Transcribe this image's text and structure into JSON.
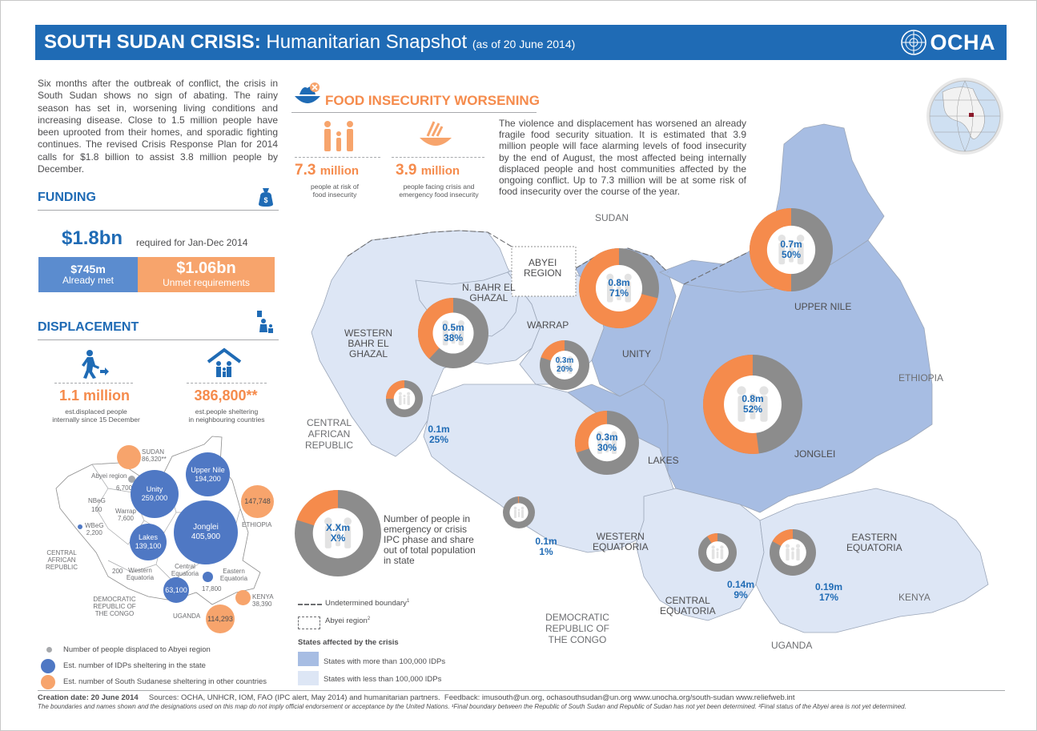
{
  "header": {
    "title_bold": "SOUTH SUDAN CRISIS:",
    "title_normal": "Humanitarian Snapshot",
    "title_date": "(as of 20 June 2014)",
    "logo_text": "OCHA"
  },
  "intro": "Six months after the outbreak of conflict, the crisis in South Sudan shows no sign of abating. The rainy season has set in, worsening living conditions and increasing disease. Close to 1.5 million people have been uprooted from their homes, and sporadic fighting continues. The revised Crisis Response Plan for 2014 calls for $1.8 billion to assist 3.8 million people by December.",
  "funding": {
    "title": "FUNDING",
    "required_value": "$1.8bn",
    "required_label": "required for Jan-Dec 2014",
    "met_value": "$745m",
    "met_label": "Already met",
    "met_share": 0.42,
    "unmet_value": "$1.06bn",
    "unmet_label": "Unmet requirements"
  },
  "displacement": {
    "title": "DISPLACEMENT",
    "idp_value": "1.1 million",
    "idp_label_1": "est.displaced people",
    "idp_label_2": "internally since 15 December",
    "refugee_value": "386,800**",
    "refugee_label_1": "est.people sheltering",
    "refugee_label_2": "in neighbouring countries"
  },
  "small_map": {
    "sudan": {
      "name": "SUDAN",
      "value": "86,320**"
    },
    "abyei": {
      "name": "Abyei region",
      "value": "6,700"
    },
    "unity": {
      "name": "Unity",
      "value": "259,000"
    },
    "upper_nile": {
      "name": "Upper Nile",
      "value": "194,200"
    },
    "ethiopia_val": "147,748",
    "ethiopia": "ETHIOPIA",
    "nbeg": {
      "name": "NBeG",
      "value": "100"
    },
    "warrap": {
      "name": "Warrap",
      "value": "7,600"
    },
    "wbeg": {
      "name": "WBeG",
      "value": "2,200"
    },
    "lakes": {
      "name": "Lakes",
      "value": "139,100"
    },
    "jonglei": {
      "name": "Jonglei",
      "value": "405,900"
    },
    "car": "CENTRAL AFRICAN REPUBLIC",
    "wequatoria": {
      "value": "200",
      "name": "Western Equatoria"
    },
    "cequatoria": {
      "name": "Central Equatoria",
      "value": "63,100"
    },
    "eequatoria": {
      "name": "Eastern Equatoria",
      "value": "17,800"
    },
    "kenya": {
      "name": "KENYA",
      "value": "38,390"
    },
    "drc": "DEMOCRATIC REPUBLIC OF THE CONGO",
    "uganda": {
      "name": "UGANDA",
      "value": "114,293"
    }
  },
  "legend_small": {
    "abyei": "Number of people displaced to Abyei region",
    "idps": "Est. number of IDPs sheltering in the state",
    "other": "Est. number of South Sudanese sheltering in other countries"
  },
  "food": {
    "title": "FOOD INSECURITY WORSENING",
    "risk_value": "7.3",
    "risk_unit": "million",
    "risk_label_1": "people at risk of",
    "risk_label_2": "food insecurity",
    "crisis_value": "3.9",
    "crisis_unit": "million",
    "crisis_label_1": "people facing crisis and",
    "crisis_label_2": "emergency food insecurity",
    "paragraph": "The violence and displacement has worsened an already fragile food security situation. It is estimated that 3.9 million people will face alarming levels of food insecurity by the end of August, the most affected being internally displaced people and host communities affected by the ongoing conflict. Up to 7.3 million will be at some risk of food insecurity over the course of the year."
  },
  "map": {
    "countries": {
      "sudan": "SUDAN",
      "ethiopia": "ETHIOPIA",
      "car_1": "CENTRAL",
      "car_2": "AFRICAN",
      "car_3": "REPUBLIC",
      "kenya": "KENYA",
      "uganda": "UGANDA",
      "drc_1": "DEMOCRATIC",
      "drc_2": "REPUBLIC OF",
      "drc_3": "THE CONGO"
    },
    "states": {
      "abyei_1": "ABYEI",
      "abyei_2": "REGION",
      "nbeg_1": "N. BAHR EL",
      "nbeg_2": "GHAZAL",
      "wbeg_1": "WESTERN",
      "wbeg_2": "BAHR EL",
      "wbeg_3": "GHAZAL",
      "warrap": "WARRAP",
      "unity": "UNITY",
      "upper_nile": "UPPER NILE",
      "jonglei": "JONGLEI",
      "lakes": "LAKES",
      "wequatoria_1": "WESTERN",
      "wequatoria_2": "EQUATORIA",
      "cequatoria_1": "CENTRAL",
      "cequatoria_2": "EQUATORIA",
      "eequatoria_1": "EASTERN",
      "eequatoria_2": "EQUATORIA"
    },
    "donuts": [
      {
        "id": "unity",
        "people": "0.8m",
        "pct": "71%",
        "share": 0.71
      },
      {
        "id": "upper_nile",
        "people": "0.7m",
        "pct": "50%",
        "share": 0.5
      },
      {
        "id": "nbeg",
        "people": "0.5m",
        "pct": "38%",
        "share": 0.38
      },
      {
        "id": "warrap",
        "people": "0.3m",
        "pct": "20%",
        "share": 0.2
      },
      {
        "id": "wbeg",
        "people": "0.1m",
        "pct": "25%",
        "share": 0.25
      },
      {
        "id": "jonglei",
        "people": "0.8m",
        "pct": "52%",
        "share": 0.52
      },
      {
        "id": "lakes",
        "people": "0.3m",
        "pct": "30%",
        "share": 0.3
      },
      {
        "id": "wequatoria",
        "people": "0.1m",
        "pct": "1%",
        "share": 0.01
      },
      {
        "id": "cequatoria",
        "people": "0.14m",
        "pct": "9%",
        "share": 0.09
      },
      {
        "id": "eequatoria",
        "people": "0.19m",
        "pct": "17%",
        "share": 0.17
      }
    ],
    "legend_donut": {
      "people": "X.Xm",
      "pct": "X%",
      "share": 0.2,
      "text": "Number of people in emergency or crisis IPC phase and share out of total population in state"
    },
    "legend": {
      "undetermined": "Undetermined boundary",
      "undetermined_sup": "1",
      "abyei": "Abyei region",
      "abyei_sup": "2",
      "states_title": "States affected by the crisis",
      "more": "States with more than 100,000 IDPs",
      "less": "States with less than 100,000 IDPs"
    },
    "colors": {
      "more_idps": "#a7bde3",
      "less_idps": "#dde6f5",
      "crisis": "#f58b4c",
      "other": "#8c8c8c"
    }
  },
  "footer": {
    "creation": "Creation date: 20 June  2014",
    "sources": "Sources: OCHA, UNHCR, IOM, FAO (IPC alert, May 2014) and humanitarian partners.",
    "feedback": "Feedback: imusouth@un.org, ochasouthsudan@un.org   www.unocha.org/south-sudan    www.reliefweb.int",
    "disclaimer": "The boundaries and names shown and the designations used on this map do not imply official endorsement or acceptance by the United Nations.  ¹Final boundary between the Republic of  South Sudan and Republic of Sudan has not yet been determined. ²Final status of the Abyei area is not yet determined."
  }
}
